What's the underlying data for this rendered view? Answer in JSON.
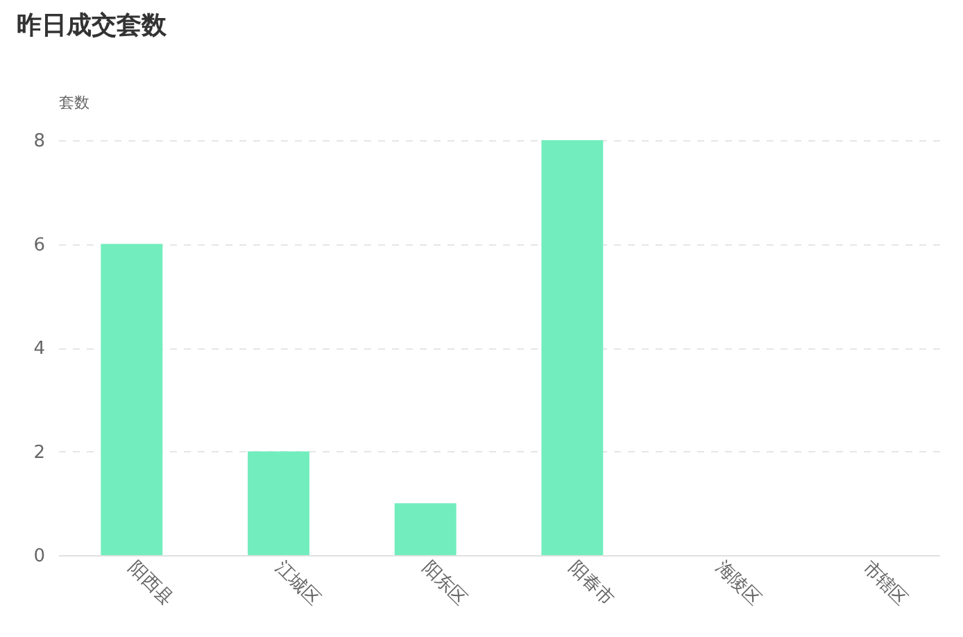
{
  "chart_data": {
    "type": "bar",
    "title": "昨日成交套数",
    "ylabel": "套数",
    "categories": [
      "阳西县",
      "江城区",
      "阳东区",
      "阳春市",
      "海陵区",
      "市辖区"
    ],
    "values": [
      6,
      2,
      1,
      8,
      0,
      0
    ],
    "color": "#72edbe",
    "ylim": [
      0,
      8
    ],
    "yticks": [
      0,
      2,
      4,
      6,
      8
    ],
    "grid": "y"
  }
}
